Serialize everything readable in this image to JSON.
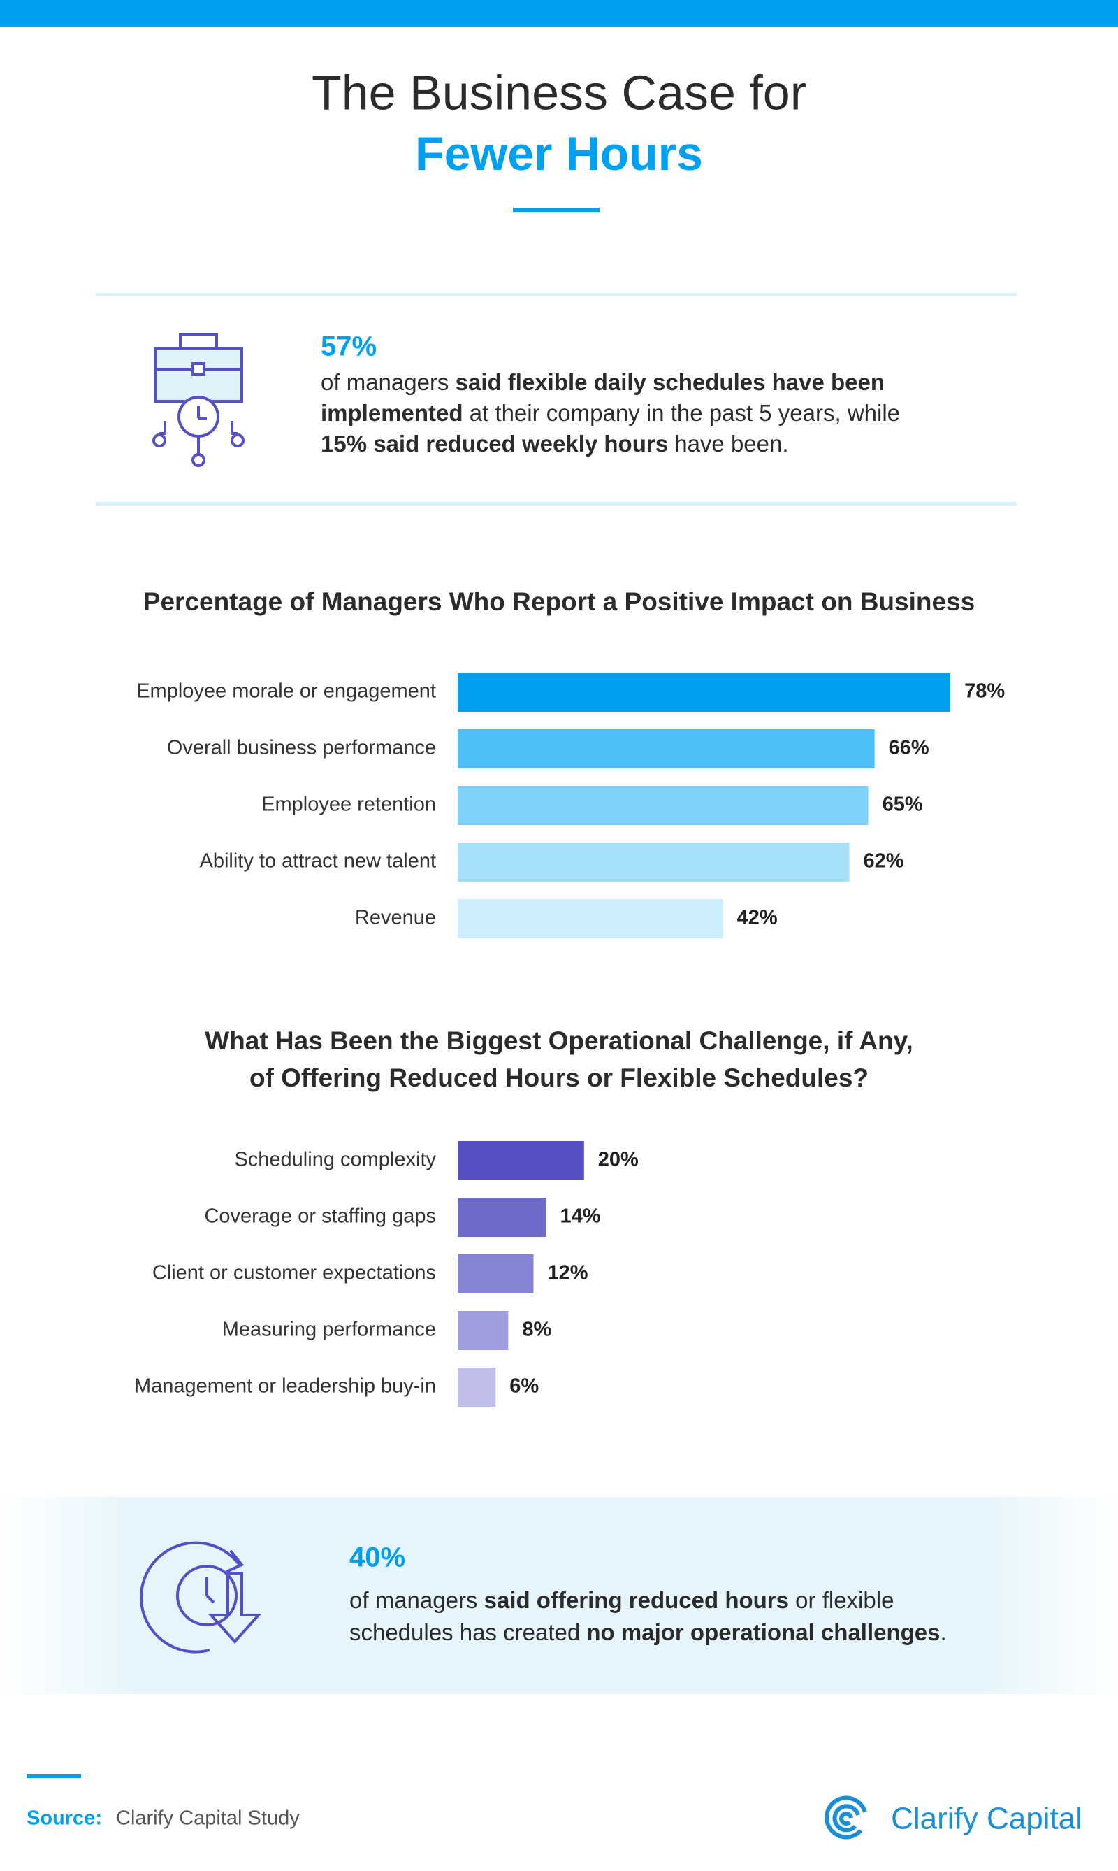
{
  "header": {
    "title_line1": "The Business Case for",
    "title_line2": "Fewer Hours"
  },
  "stat1": {
    "value": "57%",
    "lines": [
      [
        {
          "text": "of managers ",
          "bold": false
        },
        {
          "text": "said flexible daily schedules have been",
          "bold": true
        }
      ],
      [
        {
          "text": "implemented",
          "bold": true
        },
        {
          "text": " at their company in the past 5 years, while",
          "bold": false
        }
      ],
      [
        {
          "text": "15% said reduced weekly hours",
          "bold": true
        },
        {
          "text": " have been.",
          "bold": false
        }
      ]
    ]
  },
  "chart_data": [
    {
      "type": "bar",
      "horizontal": true,
      "title": [
        "Percentage of Managers Who Report a Positive Impact on Business"
      ],
      "categories": [
        "Employee morale or engagement",
        "Overall business performance",
        "Employee retention",
        "Ability to attract new talent",
        "Revenue"
      ],
      "values": [
        78,
        66,
        65,
        62,
        42
      ],
      "value_labels": [
        "78%",
        "66%",
        "65%",
        "62%",
        "42%"
      ],
      "colors": [
        "#00a0f0",
        "#4dbff5",
        "#80d2f8",
        "#a6e0fa",
        "#cdeefc"
      ],
      "xlim": [
        0,
        100
      ]
    },
    {
      "type": "bar",
      "horizontal": true,
      "title": [
        "What Has Been the Biggest Operational Challenge, if Any,",
        "of Offering Reduced Hours or Flexible Schedules?"
      ],
      "categories": [
        "Scheduling complexity",
        "Coverage or staffing gaps",
        "Client or customer expectations",
        "Measuring performance",
        "Management or leadership buy-in"
      ],
      "values": [
        20,
        14,
        12,
        8,
        6
      ],
      "value_labels": [
        "20%",
        "14%",
        "12%",
        "8%",
        "6%"
      ],
      "colors": [
        "#5550c4",
        "#6e6ccb",
        "#8583d4",
        "#9e9ddd",
        "#c0bfea"
      ],
      "xlim": [
        0,
        100
      ]
    }
  ],
  "stat2": {
    "value": "40%",
    "lines": [
      [
        {
          "text": "of managers ",
          "bold": false
        },
        {
          "text": "said offering reduced hours",
          "bold": true
        },
        {
          "text": " or flexible",
          "bold": false
        }
      ],
      [
        {
          "text": "schedules has created ",
          "bold": false
        },
        {
          "text": "no major operational challenges",
          "bold": true
        },
        {
          "text": ".",
          "bold": false
        }
      ]
    ]
  },
  "source": {
    "label": "Source:",
    "text": "Clarify Capital Study"
  },
  "logo": "Clarify Capital"
}
